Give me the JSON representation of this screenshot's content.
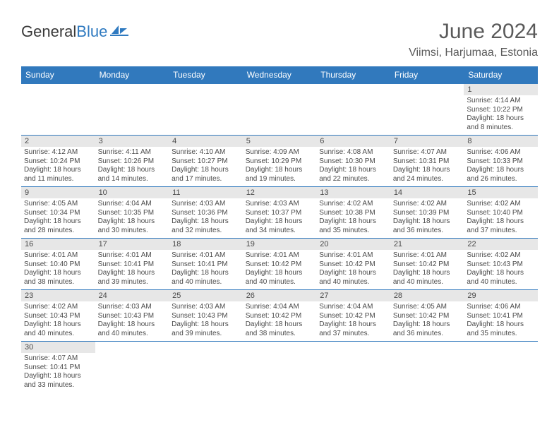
{
  "brand": {
    "part1": "General",
    "part2": "Blue"
  },
  "title": "June 2024",
  "location": "Viimsi, Harjumaa, Estonia",
  "colors": {
    "header_bg": "#3179bd",
    "header_fg": "#ffffff",
    "daynum_bg": "#e7e7e7",
    "border": "#3179bd"
  },
  "weekdays": [
    "Sunday",
    "Monday",
    "Tuesday",
    "Wednesday",
    "Thursday",
    "Friday",
    "Saturday"
  ],
  "weeks": [
    [
      null,
      null,
      null,
      null,
      null,
      null,
      {
        "n": "1",
        "sr": "Sunrise: 4:14 AM",
        "ss": "Sunset: 10:22 PM",
        "d1": "Daylight: 18 hours",
        "d2": "and 8 minutes."
      }
    ],
    [
      {
        "n": "2",
        "sr": "Sunrise: 4:12 AM",
        "ss": "Sunset: 10:24 PM",
        "d1": "Daylight: 18 hours",
        "d2": "and 11 minutes."
      },
      {
        "n": "3",
        "sr": "Sunrise: 4:11 AM",
        "ss": "Sunset: 10:26 PM",
        "d1": "Daylight: 18 hours",
        "d2": "and 14 minutes."
      },
      {
        "n": "4",
        "sr": "Sunrise: 4:10 AM",
        "ss": "Sunset: 10:27 PM",
        "d1": "Daylight: 18 hours",
        "d2": "and 17 minutes."
      },
      {
        "n": "5",
        "sr": "Sunrise: 4:09 AM",
        "ss": "Sunset: 10:29 PM",
        "d1": "Daylight: 18 hours",
        "d2": "and 19 minutes."
      },
      {
        "n": "6",
        "sr": "Sunrise: 4:08 AM",
        "ss": "Sunset: 10:30 PM",
        "d1": "Daylight: 18 hours",
        "d2": "and 22 minutes."
      },
      {
        "n": "7",
        "sr": "Sunrise: 4:07 AM",
        "ss": "Sunset: 10:31 PM",
        "d1": "Daylight: 18 hours",
        "d2": "and 24 minutes."
      },
      {
        "n": "8",
        "sr": "Sunrise: 4:06 AM",
        "ss": "Sunset: 10:33 PM",
        "d1": "Daylight: 18 hours",
        "d2": "and 26 minutes."
      }
    ],
    [
      {
        "n": "9",
        "sr": "Sunrise: 4:05 AM",
        "ss": "Sunset: 10:34 PM",
        "d1": "Daylight: 18 hours",
        "d2": "and 28 minutes."
      },
      {
        "n": "10",
        "sr": "Sunrise: 4:04 AM",
        "ss": "Sunset: 10:35 PM",
        "d1": "Daylight: 18 hours",
        "d2": "and 30 minutes."
      },
      {
        "n": "11",
        "sr": "Sunrise: 4:03 AM",
        "ss": "Sunset: 10:36 PM",
        "d1": "Daylight: 18 hours",
        "d2": "and 32 minutes."
      },
      {
        "n": "12",
        "sr": "Sunrise: 4:03 AM",
        "ss": "Sunset: 10:37 PM",
        "d1": "Daylight: 18 hours",
        "d2": "and 34 minutes."
      },
      {
        "n": "13",
        "sr": "Sunrise: 4:02 AM",
        "ss": "Sunset: 10:38 PM",
        "d1": "Daylight: 18 hours",
        "d2": "and 35 minutes."
      },
      {
        "n": "14",
        "sr": "Sunrise: 4:02 AM",
        "ss": "Sunset: 10:39 PM",
        "d1": "Daylight: 18 hours",
        "d2": "and 36 minutes."
      },
      {
        "n": "15",
        "sr": "Sunrise: 4:02 AM",
        "ss": "Sunset: 10:40 PM",
        "d1": "Daylight: 18 hours",
        "d2": "and 37 minutes."
      }
    ],
    [
      {
        "n": "16",
        "sr": "Sunrise: 4:01 AM",
        "ss": "Sunset: 10:40 PM",
        "d1": "Daylight: 18 hours",
        "d2": "and 38 minutes."
      },
      {
        "n": "17",
        "sr": "Sunrise: 4:01 AM",
        "ss": "Sunset: 10:41 PM",
        "d1": "Daylight: 18 hours",
        "d2": "and 39 minutes."
      },
      {
        "n": "18",
        "sr": "Sunrise: 4:01 AM",
        "ss": "Sunset: 10:41 PM",
        "d1": "Daylight: 18 hours",
        "d2": "and 40 minutes."
      },
      {
        "n": "19",
        "sr": "Sunrise: 4:01 AM",
        "ss": "Sunset: 10:42 PM",
        "d1": "Daylight: 18 hours",
        "d2": "and 40 minutes."
      },
      {
        "n": "20",
        "sr": "Sunrise: 4:01 AM",
        "ss": "Sunset: 10:42 PM",
        "d1": "Daylight: 18 hours",
        "d2": "and 40 minutes."
      },
      {
        "n": "21",
        "sr": "Sunrise: 4:01 AM",
        "ss": "Sunset: 10:42 PM",
        "d1": "Daylight: 18 hours",
        "d2": "and 40 minutes."
      },
      {
        "n": "22",
        "sr": "Sunrise: 4:02 AM",
        "ss": "Sunset: 10:43 PM",
        "d1": "Daylight: 18 hours",
        "d2": "and 40 minutes."
      }
    ],
    [
      {
        "n": "23",
        "sr": "Sunrise: 4:02 AM",
        "ss": "Sunset: 10:43 PM",
        "d1": "Daylight: 18 hours",
        "d2": "and 40 minutes."
      },
      {
        "n": "24",
        "sr": "Sunrise: 4:03 AM",
        "ss": "Sunset: 10:43 PM",
        "d1": "Daylight: 18 hours",
        "d2": "and 40 minutes."
      },
      {
        "n": "25",
        "sr": "Sunrise: 4:03 AM",
        "ss": "Sunset: 10:43 PM",
        "d1": "Daylight: 18 hours",
        "d2": "and 39 minutes."
      },
      {
        "n": "26",
        "sr": "Sunrise: 4:04 AM",
        "ss": "Sunset: 10:42 PM",
        "d1": "Daylight: 18 hours",
        "d2": "and 38 minutes."
      },
      {
        "n": "27",
        "sr": "Sunrise: 4:04 AM",
        "ss": "Sunset: 10:42 PM",
        "d1": "Daylight: 18 hours",
        "d2": "and 37 minutes."
      },
      {
        "n": "28",
        "sr": "Sunrise: 4:05 AM",
        "ss": "Sunset: 10:42 PM",
        "d1": "Daylight: 18 hours",
        "d2": "and 36 minutes."
      },
      {
        "n": "29",
        "sr": "Sunrise: 4:06 AM",
        "ss": "Sunset: 10:41 PM",
        "d1": "Daylight: 18 hours",
        "d2": "and 35 minutes."
      }
    ],
    [
      {
        "n": "30",
        "sr": "Sunrise: 4:07 AM",
        "ss": "Sunset: 10:41 PM",
        "d1": "Daylight: 18 hours",
        "d2": "and 33 minutes."
      },
      null,
      null,
      null,
      null,
      null,
      null
    ]
  ]
}
